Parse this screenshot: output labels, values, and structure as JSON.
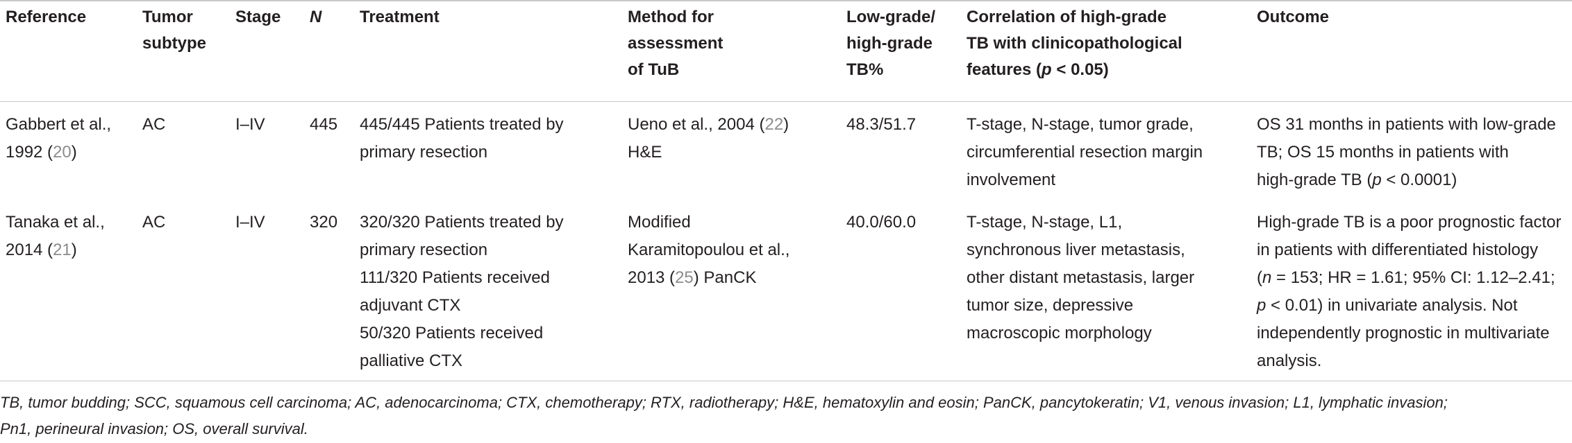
{
  "table": {
    "headers": {
      "reference": "Reference",
      "tumor_subtype": [
        "Tumor",
        "subtype"
      ],
      "stage": "Stage",
      "n": "N",
      "treatment": "Treatment",
      "method": [
        "Method for",
        "assessment",
        "of TuB"
      ],
      "grade": [
        "Low-grade/",
        "high-grade",
        "TB%"
      ],
      "correlation": [
        "Correlation of high-grade",
        "TB with clinicopathological",
        "features (",
        "p",
        " < 0.05)"
      ],
      "outcome": "Outcome"
    },
    "rows": [
      {
        "reference_lines": [
          "Gabbert et al.,",
          "1992 ("
        ],
        "reference_cite": "20",
        "reference_close": ")",
        "tumor_subtype": "AC",
        "stage": "I–IV",
        "n": "445",
        "treatment_lines": [
          "445/445 Patients treated by",
          "primary resection"
        ],
        "method_line1_text": "Ueno et al., 2004 (",
        "method_line1_cite": "22",
        "method_line1_close": ")",
        "method_line2": "H&E",
        "grade": "48.3/51.7",
        "correlation_lines": [
          "T-stage, N-stage, tumor grade,",
          "circumferential resection margin",
          "involvement"
        ],
        "outcome_line1": "OS 31 months in patients with low-grade",
        "outcome_line2": "TB; OS 15 months in patients with",
        "outcome_line3_pre": "high-grade TB (",
        "outcome_line3_p": "p",
        "outcome_line3_post": " < 0.0001)"
      },
      {
        "reference_lines": [
          "Tanaka et al.,",
          "2014 ("
        ],
        "reference_cite": "21",
        "reference_close": ")",
        "tumor_subtype": "AC",
        "stage": "I–IV",
        "n": "320",
        "treatment_lines": [
          "320/320 Patients treated by",
          "primary resection",
          "111/320 Patients received",
          "adjuvant CTX",
          "50/320 Patients received",
          "palliative CTX"
        ],
        "method_line1": "Modified",
        "method_line2": "Karamitopoulou et al.,",
        "method_line3_pre": "2013 (",
        "method_line3_cite": "25",
        "method_line3_post": ") PanCK",
        "grade": "40.0/60.0",
        "correlation_lines": [
          "T-stage, N-stage, L1,",
          "synchronous liver metastasis,",
          "other distant metastasis, larger",
          "tumor size, depressive",
          "macroscopic morphology"
        ],
        "outcome_line1": "High-grade TB is a poor prognostic factor",
        "outcome_line2": "in patients with differentiated histology",
        "outcome_line3_pre": "(",
        "outcome_line3_n": "n",
        "outcome_line3_post": " = 153; HR = 1.61; 95% CI: 1.12–2.41;",
        "outcome_line4_p": "p",
        "outcome_line4_post": " < 0.01) in univariate analysis. Not",
        "outcome_line5": "independently prognostic in multivariate",
        "outcome_line6": "analysis."
      }
    ]
  },
  "footnote": {
    "line1": "TB, tumor budding; SCC, squamous cell carcinoma; AC, adenocarcinoma; CTX, chemotherapy; RTX, radiotherapy; H&E, hematoxylin and eosin; PanCK, pancytokeratin; V1, venous invasion; L1, lymphatic invasion;",
    "line2": "Pn1, perineural invasion; OS, overall survival."
  },
  "colors": {
    "text": "#231f20",
    "reference_link": "#8c8c8c",
    "rule": "#c7c8ca"
  }
}
